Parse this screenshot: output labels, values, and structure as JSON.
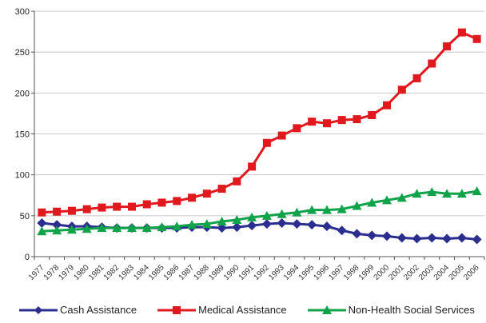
{
  "chart_data": {
    "type": "line",
    "x": [
      "1977",
      "1978",
      "1979",
      "1980",
      "1981",
      "1982",
      "1983",
      "1984",
      "1985",
      "1986",
      "1987",
      "1988",
      "1989",
      "1990",
      "1991",
      "1992",
      "1993",
      "1994",
      "1995",
      "1996",
      "1997",
      "1998",
      "1999",
      "2000",
      "2001",
      "2002",
      "2003",
      "2004",
      "2005",
      "2006"
    ],
    "series": [
      {
        "name": "Cash Assistance",
        "color": "#2b2e8f",
        "marker": "diamond",
        "values": [
          41,
          39,
          37,
          37,
          36,
          35,
          35,
          35,
          35,
          35,
          36,
          36,
          35,
          36,
          38,
          40,
          41,
          40,
          39,
          37,
          32,
          28,
          26,
          25,
          23,
          22,
          23,
          22,
          23,
          21
        ]
      },
      {
        "name": "Medical Assistance",
        "color": "#e0191e",
        "marker": "square",
        "values": [
          54,
          55,
          56,
          58,
          60,
          61,
          61,
          64,
          66,
          68,
          72,
          77,
          83,
          92,
          110,
          139,
          148,
          157,
          165,
          163,
          167,
          168,
          173,
          185,
          204,
          218,
          236,
          257,
          274,
          266
        ]
      },
      {
        "name": "Non-Health Social Services",
        "color": "#10a34a",
        "marker": "triangle",
        "values": [
          31,
          32,
          33,
          34,
          35,
          35,
          35,
          35,
          36,
          37,
          39,
          40,
          43,
          45,
          48,
          50,
          52,
          54,
          57,
          57,
          58,
          62,
          66,
          69,
          72,
          77,
          79,
          77,
          77,
          80
        ]
      }
    ],
    "ylim": [
      0,
      300
    ],
    "yticks": [
      "0",
      "50",
      "100",
      "150",
      "200",
      "250",
      "300"
    ],
    "xtick_labels": [
      "1977",
      "1978",
      "1979",
      "1980",
      "1981",
      "1982",
      "1983",
      "1984",
      "1985",
      "1986",
      "1987",
      "1988",
      "1989",
      "1990",
      "1991",
      "1992",
      "1993",
      "1994",
      "1995",
      "1996",
      "1997",
      "1998",
      "1999",
      "2000",
      "2001",
      "2002",
      "2003",
      "2004",
      "2005",
      "2006"
    ],
    "grid": "horizontal",
    "legend_position": "bottom"
  },
  "legend": {
    "cash_label": "Cash Assistance",
    "medical_label": "Medical Assistance",
    "social_label": "Non-Health Social Services"
  }
}
